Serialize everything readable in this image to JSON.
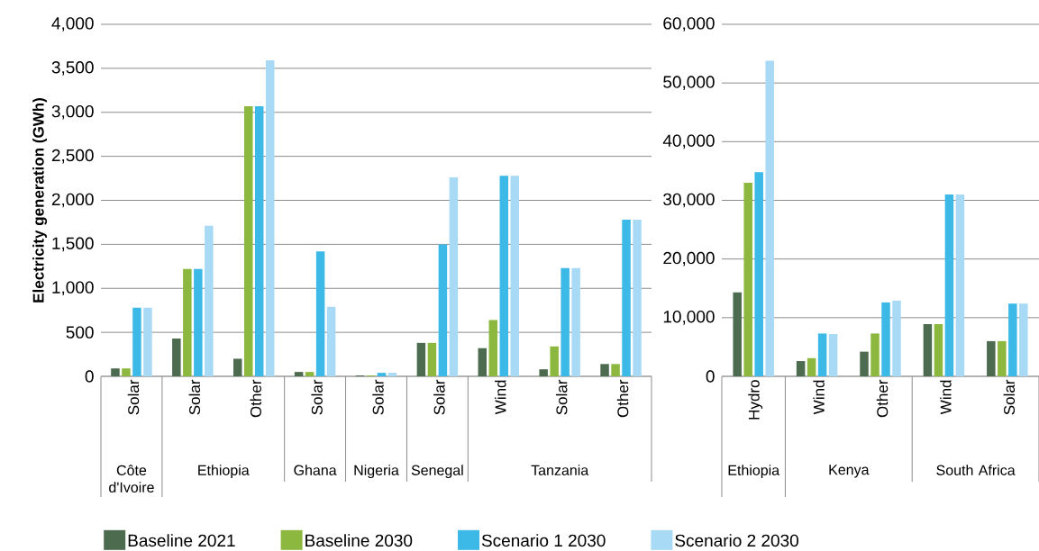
{
  "chart_data": [
    {
      "type": "bar",
      "ylabel": "Electricity generation (GWh)",
      "categories": [
        "Solar",
        "Solar",
        "Other",
        "Solar",
        "Solar",
        "Solar",
        "Wind",
        "Solar",
        "Other"
      ],
      "annotations": [
        "Côte d'Ivoire",
        "Ethiopia",
        "Ghana",
        "Nigeria",
        "Senegal",
        "Tanzania"
      ],
      "series": [
        {
          "name": "Baseline 2021",
          "color": "#4d6b4f",
          "values": [
            90,
            430,
            200,
            50,
            10,
            380,
            320,
            80,
            140
          ]
        },
        {
          "name": "Baseline 2030",
          "color": "#8cb83f",
          "values": [
            90,
            1220,
            3070,
            50,
            10,
            380,
            640,
            340,
            140
          ]
        },
        {
          "name": "Scenario 1 2030",
          "color": "#3db9e8",
          "values": [
            780,
            1220,
            3070,
            1420,
            40,
            1500,
            2280,
            1230,
            1780
          ]
        },
        {
          "name": "Scenario 2 2030",
          "color": "#a8daf5",
          "values": [
            780,
            1710,
            3590,
            790,
            40,
            2260,
            2280,
            1230,
            1780
          ]
        }
      ],
      "ylim": [
        0,
        4000
      ],
      "yticks": [
        0,
        500,
        {
          "value": 1000,
          "label": "1,000"
        },
        {
          "value": 1500,
          "label": "1,500"
        },
        {
          "value": 2000,
          "label": "2,000"
        },
        {
          "value": 2500,
          "label": "2,500"
        },
        {
          "value": 3000,
          "label": "3,000"
        },
        {
          "value": 3500,
          "label": "3,500"
        },
        {
          "value": 4000,
          "label": "4,000"
        }
      ],
      "grid": "y",
      "legend": "bottom"
    },
    {
      "type": "bar",
      "categories": [
        "Hydro",
        "Wind",
        "Other",
        "Wind",
        "Solar"
      ],
      "annotations": [
        "Ethiopia",
        "Kenya",
        "South Africa"
      ],
      "series": [
        {
          "color": "#4d6b4f",
          "values": [
            14300,
            2600,
            4200,
            8900,
            6000
          ]
        },
        {
          "color": "#8cb83f",
          "values": [
            33000,
            3100,
            7300,
            8900,
            6000
          ]
        },
        {
          "color": "#3db9e8",
          "values": [
            34800,
            7300,
            12600,
            31000,
            12400
          ]
        },
        {
          "color": "#a8daf5",
          "values": [
            53800,
            7200,
            12900,
            31000,
            12400
          ]
        }
      ],
      "ylim": [
        0,
        60000
      ],
      "yticks": [
        0,
        {
          "value": 10000,
          "label": "10,000"
        },
        {
          "value": 20000,
          "label": "20,000"
        },
        {
          "value": 30000,
          "label": "30,000"
        },
        {
          "value": 40000,
          "label": "40,000"
        },
        {
          "value": 50000,
          "label": "50,000"
        },
        {
          "value": 60000,
          "label": "60,000"
        }
      ],
      "grid": "y"
    }
  ]
}
